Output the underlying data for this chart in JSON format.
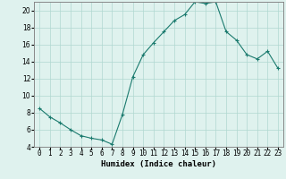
{
  "x": [
    0,
    1,
    2,
    3,
    4,
    5,
    6,
    7,
    8,
    9,
    10,
    11,
    12,
    13,
    14,
    15,
    16,
    17,
    18,
    19,
    20,
    21,
    22,
    23
  ],
  "y": [
    8.5,
    7.5,
    6.8,
    6.0,
    5.3,
    5.0,
    4.8,
    4.3,
    7.8,
    12.2,
    14.8,
    16.2,
    17.5,
    18.8,
    19.5,
    21.0,
    20.8,
    21.0,
    17.5,
    16.5,
    14.8,
    14.3,
    15.2,
    13.2
  ],
  "line_color": "#1a7a6e",
  "marker": "+",
  "marker_size": 3,
  "marker_linewidth": 0.8,
  "bg_color": "#dff2ee",
  "grid_color": "#b0d8d0",
  "xlabel": "Humidex (Indice chaleur)",
  "ylim": [
    4,
    21
  ],
  "xlim": [
    -0.5,
    23.5
  ],
  "yticks": [
    4,
    6,
    8,
    10,
    12,
    14,
    16,
    18,
    20
  ],
  "xtick_labels": [
    "0",
    "1",
    "2",
    "3",
    "4",
    "5",
    "6",
    "7",
    "8",
    "9",
    "10",
    "11",
    "12",
    "13",
    "14",
    "15",
    "16",
    "17",
    "18",
    "19",
    "20",
    "21",
    "22",
    "23"
  ],
  "axis_fontsize": 6,
  "tick_fontsize": 5.5,
  "xlabel_fontsize": 6.5,
  "linewidth": 0.8
}
